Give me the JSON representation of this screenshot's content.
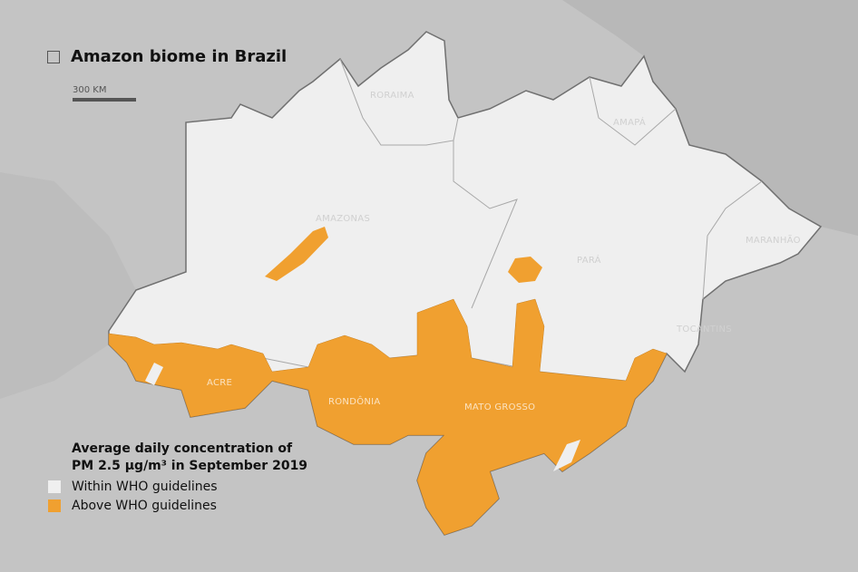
{
  "title": "Amazon biome in Brazil",
  "scale_label": "300 KM",
  "legend": {
    "title_line1": "Average daily concentration of",
    "title_line2": "PM 2.5 µg/m³ in September 2019",
    "items": [
      {
        "label": "Within WHO guidelines",
        "color": "#efefef"
      },
      {
        "label": "Above WHO guidelines",
        "color": "#f0a030"
      }
    ]
  },
  "states": {
    "roraima": "RORAIMA",
    "amapa": "AMAPÁ",
    "amazonas": "AMAZONAS",
    "para": "PARÁ",
    "maranhao": "MARANHÃO",
    "tocantins": "TOCANTINS",
    "acre": "ACRE",
    "rondonia": "RONDÔNIA",
    "mato_grosso": "MATO GROSSO"
  },
  "colors": {
    "background": "#c4c4c4",
    "ocean_dark": "#b0b0b0",
    "biome_within": "#efefef",
    "biome_above": "#f0a030"
  }
}
